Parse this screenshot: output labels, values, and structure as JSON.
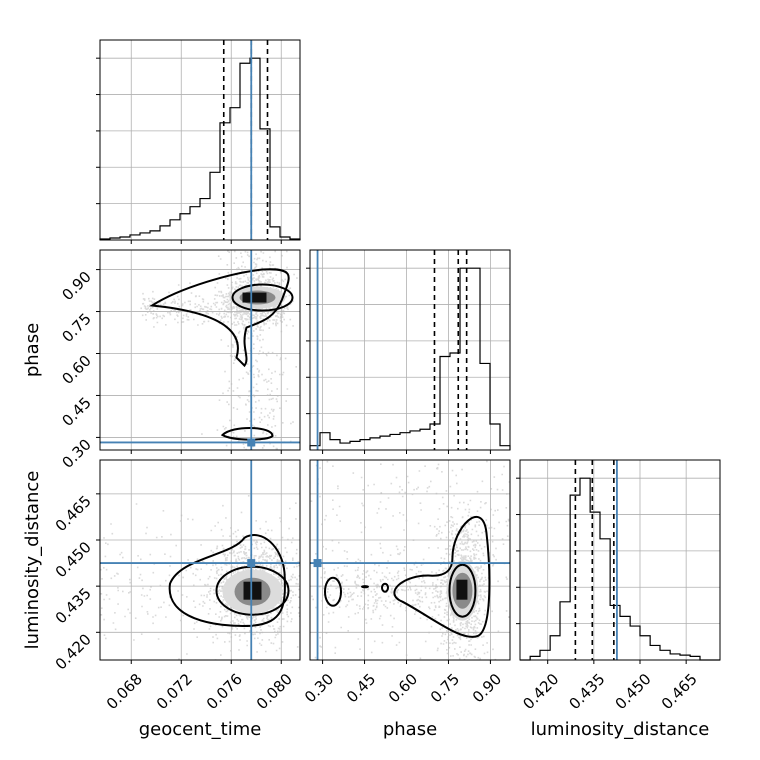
{
  "chart_data": {
    "type": "corner",
    "parameters": [
      "geocent_time",
      "phase",
      "luminosity_distance"
    ],
    "ranges": {
      "geocent_time": [
        0.0655,
        0.0815
      ],
      "phase": [
        0.255,
        0.97
      ],
      "luminosity_distance": [
        0.411,
        0.476
      ]
    },
    "ticks": {
      "geocent_time": [
        "0.068",
        "0.072",
        "0.076",
        "0.080"
      ],
      "phase": [
        "0.30",
        "0.45",
        "0.60",
        "0.75",
        "0.90"
      ],
      "luminosity_distance": [
        "0.420",
        "0.435",
        "0.450",
        "0.465"
      ]
    },
    "tick_values": {
      "geocent_time": [
        0.068,
        0.072,
        0.076,
        0.08
      ],
      "phase": [
        0.3,
        0.45,
        0.6,
        0.75,
        0.9
      ],
      "luminosity_distance": [
        0.42,
        0.435,
        0.45,
        0.465
      ]
    },
    "truths": {
      "geocent_time": 0.0776,
      "phase": 0.282,
      "luminosity_distance": 0.4425
    },
    "quantiles": {
      "geocent_time": [
        0.0754,
        0.0776,
        0.0789
      ],
      "phase": [
        0.7,
        0.785,
        0.815
      ],
      "luminosity_distance": [
        0.429,
        0.4345,
        0.4415
      ]
    },
    "histograms": {
      "geocent_time": {
        "edges": [
          0.0655,
          0.0663,
          0.0671,
          0.0679,
          0.0687,
          0.0695,
          0.0703,
          0.0711,
          0.0719,
          0.0727,
          0.0735,
          0.0743,
          0.0751,
          0.0759,
          0.0767,
          0.0775,
          0.0783,
          0.0791,
          0.0799,
          0.0807,
          0.0815
        ],
        "counts": [
          1,
          2,
          3,
          5,
          7,
          9,
          14,
          20,
          26,
          33,
          41,
          67,
          116,
          131,
          175,
          180,
          110,
          13,
          3,
          1
        ]
      },
      "phase": {
        "edges": [
          0.255,
          0.2908,
          0.3265,
          0.3623,
          0.398,
          0.4338,
          0.4695,
          0.5053,
          0.541,
          0.5768,
          0.6125,
          0.6483,
          0.684,
          0.7198,
          0.7555,
          0.7913,
          0.827,
          0.8628,
          0.8985,
          0.9343,
          0.97
        ],
        "counts": [
          5,
          20,
          12,
          8,
          10,
          12,
          14,
          16,
          18,
          20,
          22,
          24,
          30,
          108,
          112,
          210,
          210,
          100,
          30,
          5
        ]
      },
      "luminosity_distance": {
        "edges": [
          0.411,
          0.4143,
          0.4175,
          0.4208,
          0.424,
          0.4273,
          0.4305,
          0.4338,
          0.437,
          0.4403,
          0.4435,
          0.4468,
          0.45,
          0.4533,
          0.4565,
          0.4598,
          0.463,
          0.4663,
          0.4695,
          0.4728,
          0.476
        ],
        "counts": [
          0,
          3,
          8,
          20,
          48,
          136,
          150,
          122,
          100,
          45,
          36,
          28,
          20,
          12,
          8,
          5,
          4,
          3,
          0,
          0
        ]
      }
    },
    "scatter_centers": {
      "phase_vs_geocent_time": {
        "x": 0.0777,
        "y": 0.8
      },
      "luminosity_distance_vs_geocent_time": {
        "x": 0.0777,
        "y": 0.4345
      },
      "luminosity_distance_vs_phase": {
        "x": 0.8,
        "y": 0.4345
      }
    },
    "grid": true,
    "colors": {
      "truth": "#4682b4",
      "hist": "#000000",
      "scatter": "#bbbbbb",
      "grid": "#b0b0b0"
    }
  }
}
